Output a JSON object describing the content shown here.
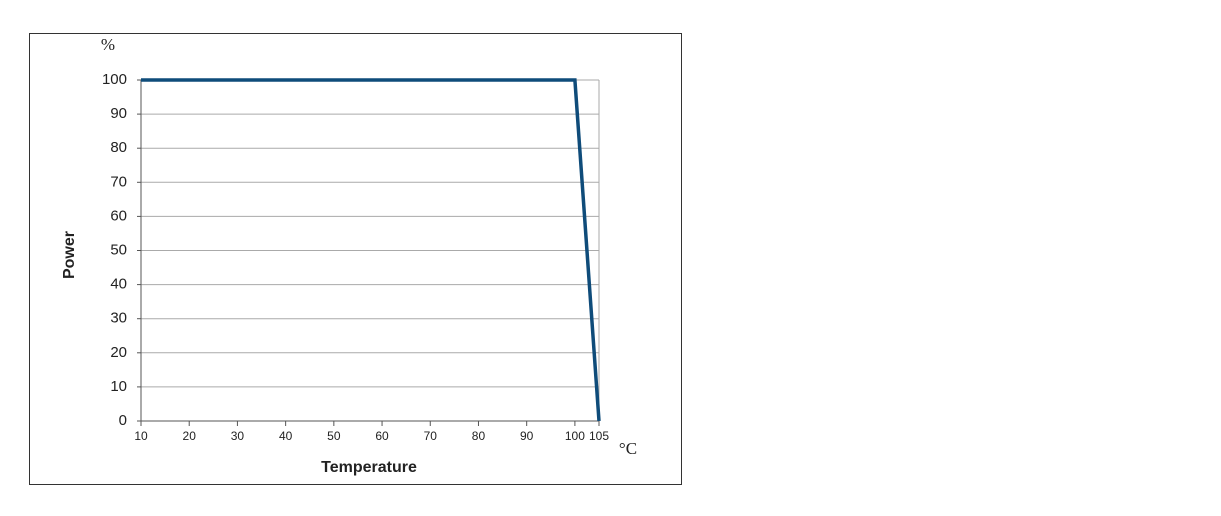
{
  "chart_data": {
    "type": "line",
    "x_label": "Temperature",
    "y_label": "Power",
    "x_unit_label": "°C",
    "y_unit_label": "%",
    "x": [
      10,
      100,
      105
    ],
    "series": [
      {
        "color": "#0f4c7a",
        "values": [
          100,
          100,
          0
        ]
      }
    ],
    "xlim": [
      10,
      105
    ],
    "xticks": [
      10,
      20,
      30,
      40,
      50,
      60,
      70,
      80,
      90,
      100,
      105
    ],
    "ylim": [
      0,
      100
    ],
    "yticks": [
      0,
      10,
      20,
      30,
      40,
      50,
      60,
      70,
      80,
      90,
      100
    ],
    "grid": true
  }
}
